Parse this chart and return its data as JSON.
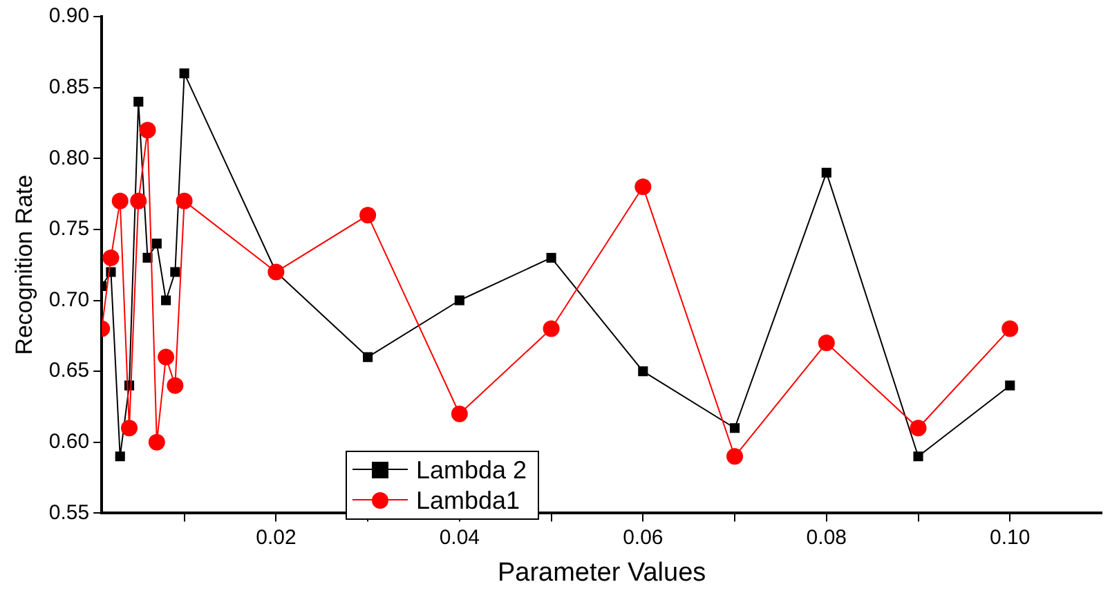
{
  "chart_data": {
    "type": "line",
    "xlabel": "Parameter Values",
    "ylabel": "Recognition Rate",
    "x": [
      0.001,
      0.002,
      0.003,
      0.004,
      0.005,
      0.006,
      0.007,
      0.008,
      0.009,
      0.01,
      0.02,
      0.03,
      0.04,
      0.05,
      0.06,
      0.07,
      0.08,
      0.09,
      0.1
    ],
    "series": [
      {
        "name": "Lambda 2",
        "color": "#000000",
        "marker": "square",
        "values": [
          0.71,
          0.72,
          0.59,
          0.64,
          0.84,
          0.73,
          0.74,
          0.7,
          0.72,
          0.86,
          0.72,
          0.66,
          0.7,
          0.73,
          0.65,
          0.61,
          0.79,
          0.59,
          0.64
        ]
      },
      {
        "name": "Lambda1",
        "color": "#ff0000",
        "marker": "circle",
        "values": [
          0.68,
          0.73,
          0.77,
          0.61,
          0.77,
          0.82,
          0.6,
          0.66,
          0.64,
          0.77,
          0.72,
          0.76,
          0.62,
          0.68,
          0.78,
          0.59,
          0.67,
          0.61,
          0.68
        ]
      }
    ],
    "xlim": [
      0.001,
      0.11
    ],
    "xticks": [
      {
        "value": 0.01,
        "label": null
      },
      {
        "value": 0.02,
        "label": "0.02"
      },
      {
        "value": 0.03,
        "label": null
      },
      {
        "value": 0.04,
        "label": "0.04"
      },
      {
        "value": 0.05,
        "label": null
      },
      {
        "value": 0.06,
        "label": "0.06"
      },
      {
        "value": 0.07,
        "label": null
      },
      {
        "value": 0.08,
        "label": "0.08"
      },
      {
        "value": 0.09,
        "label": null
      },
      {
        "value": 0.1,
        "label": "0.10"
      }
    ],
    "ylim": [
      0.55,
      0.9
    ],
    "yticks": [
      {
        "value": 0.55,
        "label": "0.55"
      },
      {
        "value": 0.6,
        "label": "0.60"
      },
      {
        "value": 0.65,
        "label": "0.65"
      },
      {
        "value": 0.7,
        "label": "0.70"
      },
      {
        "value": 0.75,
        "label": "0.75"
      },
      {
        "value": 0.8,
        "label": "0.80"
      },
      {
        "value": 0.85,
        "label": "0.85"
      },
      {
        "value": 0.9,
        "label": "0.90"
      }
    ],
    "grid": false,
    "legend": "bottom left",
    "line_style": "solid"
  }
}
